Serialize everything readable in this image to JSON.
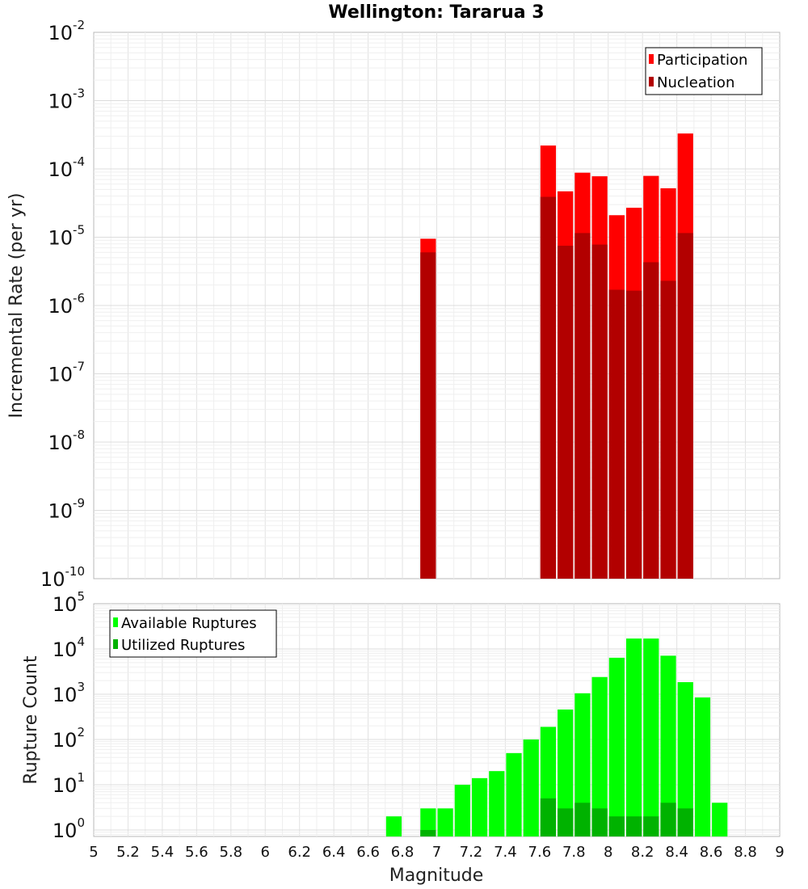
{
  "chart_data": [
    {
      "type": "bar",
      "title": "Wellington: Tararua 3",
      "xlabel": "",
      "ylabel": "Incremental Rate (per yr)",
      "xlim": [
        5,
        9
      ],
      "ylim": [
        1e-10,
        0.01
      ],
      "yscale": "log",
      "bar_width": 0.1,
      "legend_position": "top-right",
      "grid": true,
      "y_ticks": [
        {
          "base": "10",
          "exp": "-10",
          "value": 1e-10
        },
        {
          "base": "10",
          "exp": "-9",
          "value": 1e-09
        },
        {
          "base": "10",
          "exp": "-8",
          "value": 1e-08
        },
        {
          "base": "10",
          "exp": "-7",
          "value": 1e-07
        },
        {
          "base": "10",
          "exp": "-6",
          "value": 1e-06
        },
        {
          "base": "10",
          "exp": "-5",
          "value": 1e-05
        },
        {
          "base": "10",
          "exp": "-4",
          "value": 0.0001
        },
        {
          "base": "10",
          "exp": "-3",
          "value": 0.001
        },
        {
          "base": "10",
          "exp": "-2",
          "value": 0.01
        }
      ],
      "series": [
        {
          "name": "Participation",
          "color": "#ff0000",
          "points": [
            {
              "x": 6.95,
              "y": 9.5e-06
            },
            {
              "x": 7.65,
              "y": 0.00022
            },
            {
              "x": 7.75,
              "y": 4.7e-05
            },
            {
              "x": 7.85,
              "y": 8.8e-05
            },
            {
              "x": 7.95,
              "y": 7.8e-05
            },
            {
              "x": 8.05,
              "y": 2.1e-05
            },
            {
              "x": 8.15,
              "y": 2.7e-05
            },
            {
              "x": 8.25,
              "y": 7.9e-05
            },
            {
              "x": 8.35,
              "y": 5.2e-05
            },
            {
              "x": 8.45,
              "y": 0.00033
            }
          ]
        },
        {
          "name": "Nucleation",
          "color": "#b20000",
          "points": [
            {
              "x": 6.95,
              "y": 6e-06
            },
            {
              "x": 7.65,
              "y": 3.9e-05
            },
            {
              "x": 7.75,
              "y": 7.5e-06
            },
            {
              "x": 7.85,
              "y": 1.15e-05
            },
            {
              "x": 7.95,
              "y": 7.8e-06
            },
            {
              "x": 8.05,
              "y": 1.7e-06
            },
            {
              "x": 8.15,
              "y": 1.65e-06
            },
            {
              "x": 8.25,
              "y": 4.3e-06
            },
            {
              "x": 8.35,
              "y": 2.3e-06
            },
            {
              "x": 8.45,
              "y": 1.15e-05
            }
          ]
        }
      ]
    },
    {
      "type": "bar",
      "title": "",
      "xlabel": "Magnitude",
      "ylabel": "Rupture Count",
      "xlim": [
        5,
        9
      ],
      "ylim": [
        0.72,
        100000.0
      ],
      "yscale": "log",
      "bar_width": 0.1,
      "legend_position": "top-left",
      "grid": true,
      "x_ticks": [
        "5",
        "5.2",
        "5.4",
        "5.6",
        "5.8",
        "6",
        "6.2",
        "6.4",
        "6.6",
        "6.8",
        "7",
        "7.2",
        "7.4",
        "7.6",
        "7.8",
        "8",
        "8.2",
        "8.4",
        "8.6",
        "8.8",
        "9"
      ],
      "y_ticks": [
        {
          "base": "10",
          "exp": "0",
          "value": 1
        },
        {
          "base": "10",
          "exp": "1",
          "value": 10
        },
        {
          "base": "10",
          "exp": "2",
          "value": 100
        },
        {
          "base": "10",
          "exp": "3",
          "value": 1000
        },
        {
          "base": "10",
          "exp": "4",
          "value": 10000
        },
        {
          "base": "10",
          "exp": "5",
          "value": 100000
        }
      ],
      "series": [
        {
          "name": "Available Ruptures",
          "color": "#00ff00",
          "points": [
            {
              "x": 6.75,
              "y": 2
            },
            {
              "x": 6.95,
              "y": 3
            },
            {
              "x": 7.05,
              "y": 3
            },
            {
              "x": 7.15,
              "y": 10
            },
            {
              "x": 7.25,
              "y": 14
            },
            {
              "x": 7.35,
              "y": 20
            },
            {
              "x": 7.45,
              "y": 50
            },
            {
              "x": 7.55,
              "y": 100
            },
            {
              "x": 7.65,
              "y": 190
            },
            {
              "x": 7.75,
              "y": 460
            },
            {
              "x": 7.85,
              "y": 1050
            },
            {
              "x": 7.95,
              "y": 2400
            },
            {
              "x": 8.05,
              "y": 6400
            },
            {
              "x": 8.15,
              "y": 17000
            },
            {
              "x": 8.25,
              "y": 17000
            },
            {
              "x": 8.35,
              "y": 7100
            },
            {
              "x": 8.45,
              "y": 1850
            },
            {
              "x": 8.55,
              "y": 850
            },
            {
              "x": 8.65,
              "y": 4
            }
          ]
        },
        {
          "name": "Utilized Ruptures",
          "color": "#00b200",
          "points": [
            {
              "x": 6.95,
              "y": 1
            },
            {
              "x": 7.65,
              "y": 5
            },
            {
              "x": 7.75,
              "y": 3
            },
            {
              "x": 7.85,
              "y": 4
            },
            {
              "x": 7.95,
              "y": 3
            },
            {
              "x": 8.05,
              "y": 2
            },
            {
              "x": 8.15,
              "y": 2
            },
            {
              "x": 8.25,
              "y": 2
            },
            {
              "x": 8.35,
              "y": 4
            },
            {
              "x": 8.45,
              "y": 3
            }
          ]
        }
      ]
    }
  ]
}
